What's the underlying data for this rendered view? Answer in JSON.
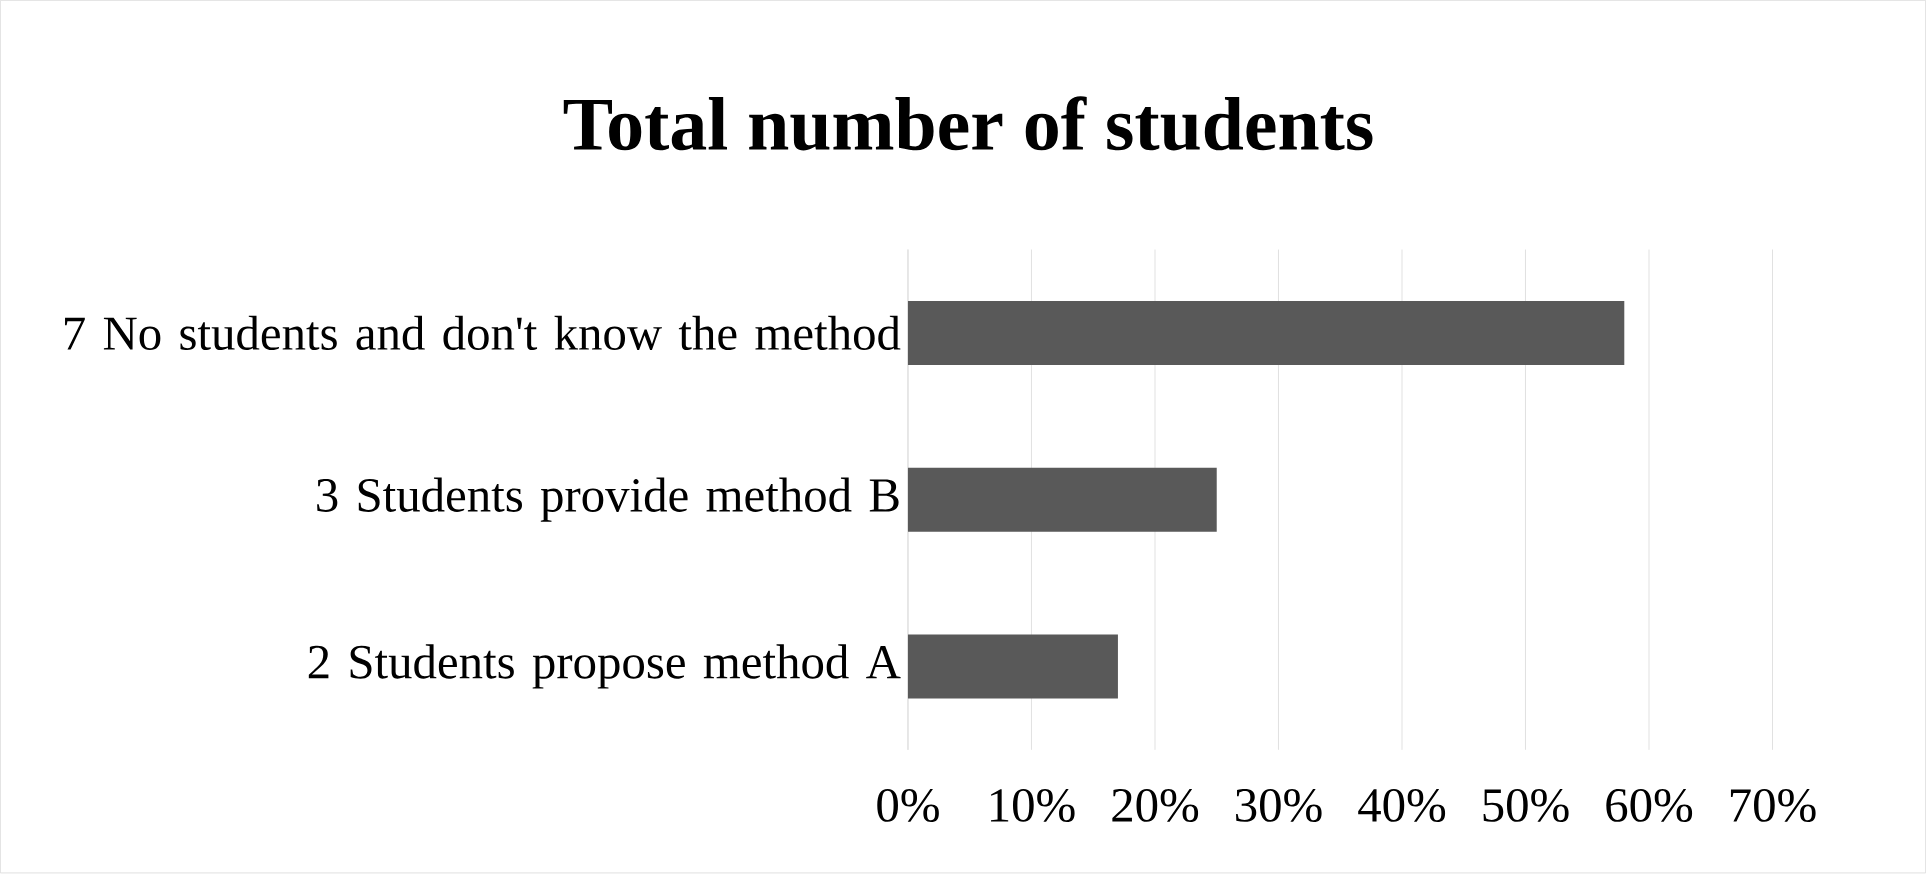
{
  "chart_data": {
    "type": "bar",
    "orientation": "horizontal",
    "title": "Total number of students",
    "categories": [
      "7 No students and don't know the method",
      "3 Students provide method B",
      "2 Students propose method A"
    ],
    "values": [
      58,
      25,
      17
    ],
    "color": "#595959",
    "xlim": [
      0,
      70
    ],
    "xticks": [
      {
        "value": 0,
        "label": "0%"
      },
      {
        "value": 10,
        "label": "10%"
      },
      {
        "value": 20,
        "label": "20%"
      },
      {
        "value": 30,
        "label": "30%"
      },
      {
        "value": 40,
        "label": "40%"
      },
      {
        "value": 50,
        "label": "50%"
      },
      {
        "value": 60,
        "label": "60%"
      },
      {
        "value": 70,
        "label": "70%"
      }
    ],
    "grid": "x"
  }
}
